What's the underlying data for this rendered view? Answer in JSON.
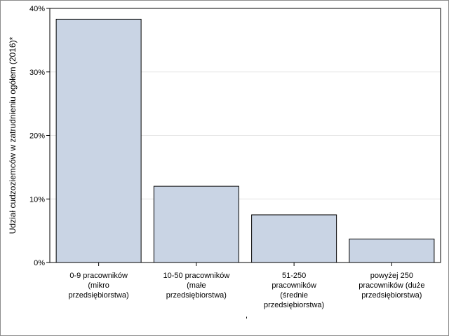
{
  "chart_data": {
    "type": "bar",
    "ylabel": "Udział cudzoziemców w zatrudnieniu ogółem (2016)*",
    "xlabel": "'",
    "categories": [
      [
        "0-9 pracowników",
        "(mikro",
        "przedsiębiorstwa)"
      ],
      [
        "10-50 pracowników",
        "(małe",
        "przedsiębiorstwa)"
      ],
      [
        "51-250",
        "pracowników",
        "(średnie",
        "przedsiębiorstwa)"
      ],
      [
        "powyżej 250",
        "pracowników (duże",
        "przedsiębiorstwa)"
      ]
    ],
    "values": [
      38.3,
      12.0,
      7.5,
      3.7
    ],
    "ylim": [
      0,
      40
    ],
    "yticks": [
      0,
      10,
      20,
      30,
      40
    ],
    "ytick_labels": [
      "0%",
      "10%",
      "20%",
      "30%",
      "40%"
    ],
    "grid": true,
    "colors": {
      "bar_fill": "#c9d4e4",
      "bar_stroke": "#000000",
      "grid": "#e6e6e6",
      "frame": "#8c8c8c"
    }
  }
}
